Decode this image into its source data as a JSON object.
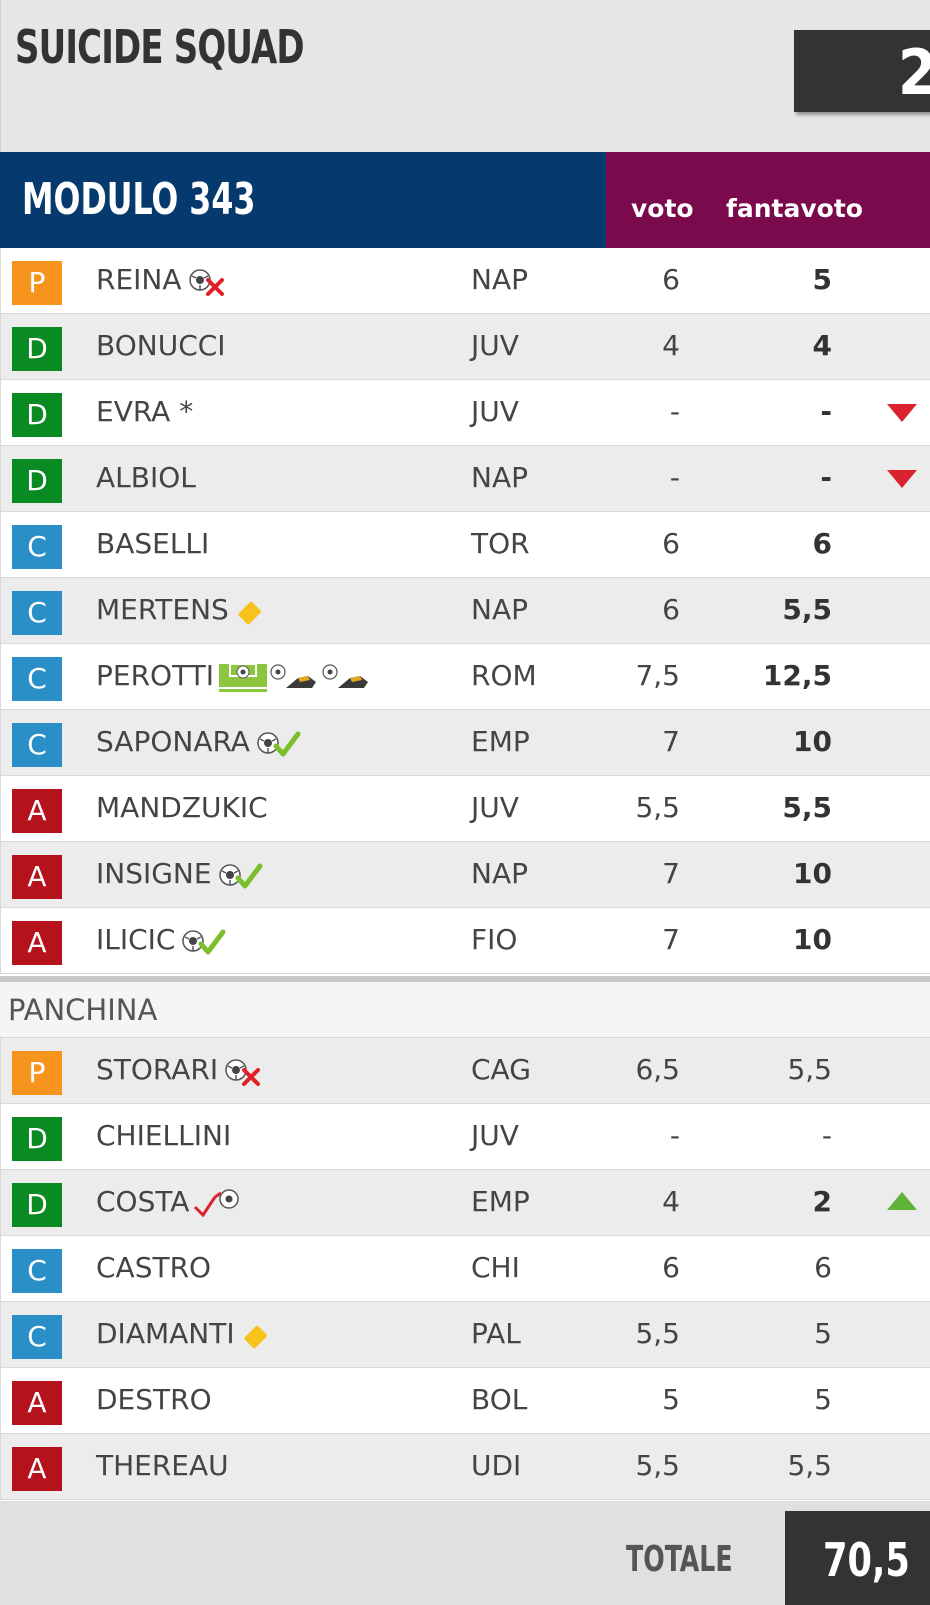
{
  "team": {
    "name": "SUICIDE SQUAD",
    "score_partial": "2"
  },
  "module": {
    "label": "MODULO 343"
  },
  "columns": {
    "voto": "voto",
    "fantavoto": "fantavoto"
  },
  "starters": [
    {
      "role": "P",
      "name": "REINA",
      "icons": [
        "ball-cross-icon"
      ],
      "club": "NAP",
      "voto": "6",
      "fantavoto": "5",
      "bold": true,
      "arrow": ""
    },
    {
      "role": "D",
      "name": "BONUCCI",
      "icons": [],
      "club": "JUV",
      "voto": "4",
      "fantavoto": "4",
      "bold": true,
      "arrow": ""
    },
    {
      "role": "D",
      "name": "EVRA *",
      "icons": [],
      "club": "JUV",
      "voto": "-",
      "fantavoto": "-",
      "bold": true,
      "arrow": "down"
    },
    {
      "role": "D",
      "name": "ALBIOL",
      "icons": [],
      "club": "NAP",
      "voto": "-",
      "fantavoto": "-",
      "bold": true,
      "arrow": "down"
    },
    {
      "role": "C",
      "name": "BASELLI",
      "icons": [],
      "club": "TOR",
      "voto": "6",
      "fantavoto": "6",
      "bold": true,
      "arrow": ""
    },
    {
      "role": "C",
      "name": "MERTENS",
      "icons": [
        "yellow-card-icon"
      ],
      "club": "NAP",
      "voto": "6",
      "fantavoto": "5,5",
      "bold": true,
      "arrow": ""
    },
    {
      "role": "C",
      "name": "PEROTTI",
      "icons": [
        "penalty-goal-icon",
        "assist-boot-icon",
        "assist-boot-icon"
      ],
      "club": "ROM",
      "voto": "7,5",
      "fantavoto": "12,5",
      "bold": true,
      "arrow": ""
    },
    {
      "role": "C",
      "name": "SAPONARA",
      "icons": [
        "ball-check-icon"
      ],
      "club": "EMP",
      "voto": "7",
      "fantavoto": "10",
      "bold": true,
      "arrow": ""
    },
    {
      "role": "A",
      "name": "MANDZUKIC",
      "icons": [],
      "club": "JUV",
      "voto": "5,5",
      "fantavoto": "5,5",
      "bold": true,
      "arrow": ""
    },
    {
      "role": "A",
      "name": "INSIGNE",
      "icons": [
        "ball-check-icon"
      ],
      "club": "NAP",
      "voto": "7",
      "fantavoto": "10",
      "bold": true,
      "arrow": ""
    },
    {
      "role": "A",
      "name": "ILICIC",
      "icons": [
        "ball-check-icon"
      ],
      "club": "FIO",
      "voto": "7",
      "fantavoto": "10",
      "bold": true,
      "arrow": ""
    }
  ],
  "bench_label": "PANCHINA",
  "bench": [
    {
      "role": "P",
      "name": "STORARI",
      "icons": [
        "ball-cross-icon"
      ],
      "club": "CAG",
      "voto": "6,5",
      "fantavoto": "5,5",
      "bold": false,
      "arrow": ""
    },
    {
      "role": "D",
      "name": "CHIELLINI",
      "icons": [],
      "club": "JUV",
      "voto": "-",
      "fantavoto": "-",
      "bold": false,
      "arrow": ""
    },
    {
      "role": "D",
      "name": "COSTA",
      "icons": [
        "own-goal-icon"
      ],
      "club": "EMP",
      "voto": "4",
      "fantavoto": "2",
      "bold": true,
      "arrow": "up"
    },
    {
      "role": "C",
      "name": "CASTRO",
      "icons": [],
      "club": "CHI",
      "voto": "6",
      "fantavoto": "6",
      "bold": false,
      "arrow": ""
    },
    {
      "role": "C",
      "name": "DIAMANTI",
      "icons": [
        "yellow-card-icon"
      ],
      "club": "PAL",
      "voto": "5,5",
      "fantavoto": "5",
      "bold": false,
      "arrow": ""
    },
    {
      "role": "A",
      "name": "DESTRO",
      "icons": [],
      "club": "BOL",
      "voto": "5",
      "fantavoto": "5",
      "bold": false,
      "arrow": ""
    },
    {
      "role": "A",
      "name": "THEREAU",
      "icons": [],
      "club": "UDI",
      "voto": "5,5",
      "fantavoto": "5,5",
      "bold": false,
      "arrow": ""
    }
  ],
  "footer": {
    "totale_label": "TOTALE",
    "total": "70,5"
  },
  "colors": {
    "module_bar": "#063a6e",
    "vote_bar": "#7a0a4c",
    "role_P": "#f7941d",
    "role_D": "#0a8a23",
    "role_C": "#2a8fc7",
    "role_A": "#b5121b",
    "arrow_down": "#d9232e",
    "arrow_up": "#5fb336"
  }
}
